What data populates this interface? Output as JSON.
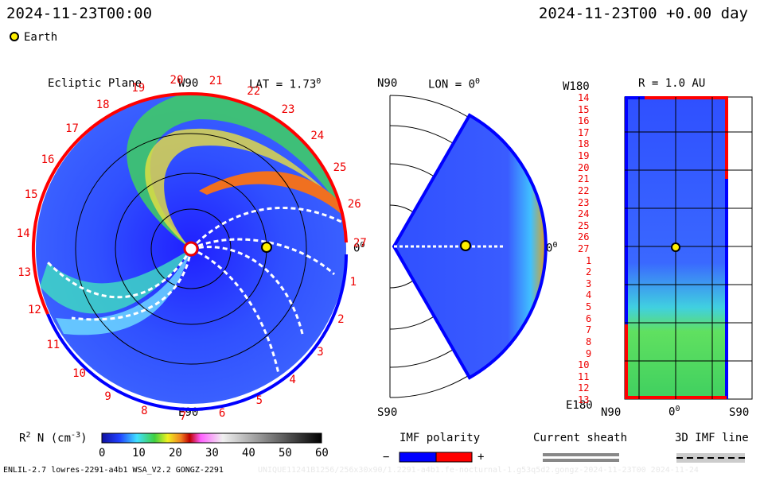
{
  "header": {
    "left_datetime": "2024-11-23T00:00",
    "right_datetime": "2024-11-23T00 +0.00 day",
    "legend_earth": "Earth"
  },
  "panels": {
    "ecliptic": {
      "title": "Ecliptic Plane",
      "w90": "W90",
      "lat": "LAT = 1.73",
      "lat_deg": "0",
      "zero": "0",
      "zero_deg": "0",
      "e90": "E90",
      "carrington_labels": [
        "20",
        "21",
        "22",
        "23",
        "24",
        "25",
        "26",
        "27",
        "1",
        "2",
        "3",
        "4",
        "5",
        "6",
        "7",
        "8",
        "9",
        "10",
        "11",
        "12",
        "13",
        "14",
        "15",
        "16",
        "17",
        "18",
        "19"
      ]
    },
    "meridional": {
      "n90": "N90",
      "lon": "LON = 0",
      "lon_deg": "0",
      "zero": "0",
      "zero_deg": "0",
      "s90": "S90"
    },
    "radial": {
      "w180": "W180",
      "r": "R = 1.0 AU",
      "e180": "E180",
      "n90": "N90",
      "zero": "0",
      "zero_deg": "0",
      "s90": "S90",
      "rows": [
        "14",
        "15",
        "16",
        "17",
        "18",
        "19",
        "20",
        "21",
        "22",
        "23",
        "24",
        "25",
        "26",
        "27",
        "1",
        "2",
        "3",
        "4",
        "5",
        "6",
        "7",
        "8",
        "9",
        "10",
        "11",
        "12",
        "13"
      ]
    }
  },
  "colorbar": {
    "label_prefix": "R",
    "label_sup": "2",
    "label_mid": " N (cm",
    "label_sup2": "-3",
    "label_end": ")",
    "ticks": [
      "0",
      "10",
      "20",
      "30",
      "40",
      "50",
      "60"
    ]
  },
  "imf": {
    "title": "IMF polarity",
    "minus": "−",
    "plus": "+",
    "neg_color": "#0000ff",
    "pos_color": "#ff0000"
  },
  "sheath": {
    "title": "Current sheath"
  },
  "imf3d": {
    "title": "3D IMF line"
  },
  "footer": {
    "left": "ENLIL-2.7 lowres-2291-a4b1 WSA_V2.2 GONGZ-2291",
    "right": "UNIQUE11241B1256/256x30x90/1.2291-a4b1.fe-nocturnal-1.g53q5d2.gongz-2024-11-23T00   2024-11-24"
  },
  "chart_data": {
    "type": "heatmap",
    "title": "",
    "quantity": "R2 N (cm-3)",
    "colorscale_range": [
      0,
      60
    ],
    "earth_position": {
      "lon_deg": 0,
      "lat_deg": 1.73,
      "r_au": 1.0
    }
  }
}
